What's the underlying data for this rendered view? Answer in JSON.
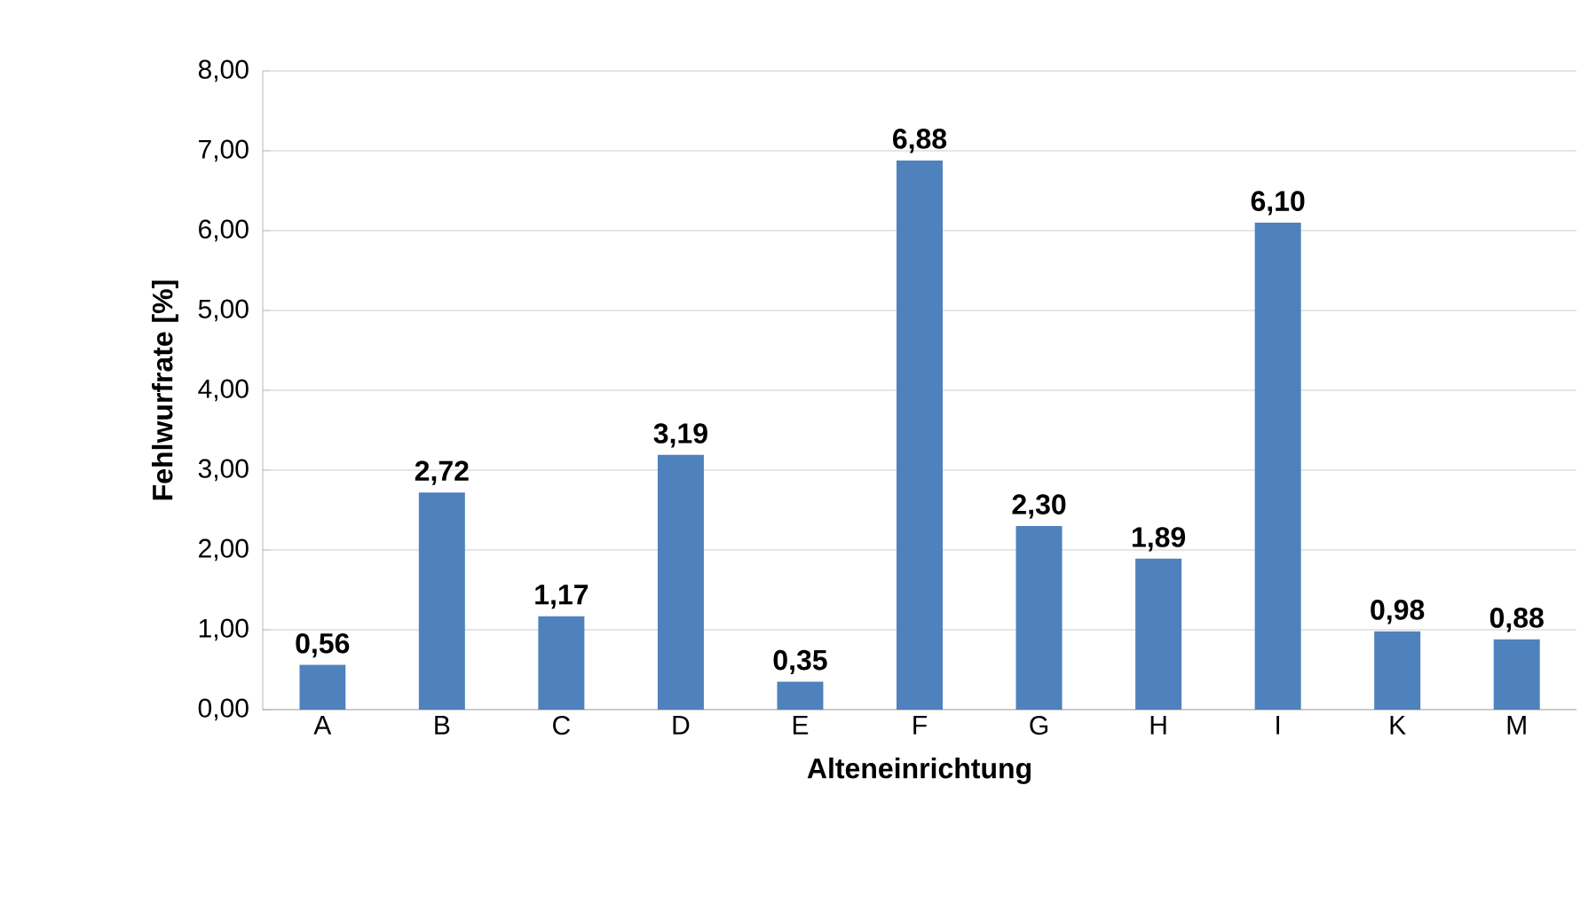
{
  "chart_data": {
    "type": "bar",
    "xlabel": "Alteneinrichtung",
    "ylabel": "Fehlwurfrate [%]",
    "categories": [
      "A",
      "B",
      "C",
      "D",
      "E",
      "F",
      "G",
      "H",
      "I",
      "K",
      "M"
    ],
    "values": [
      0.56,
      2.72,
      1.17,
      3.19,
      0.35,
      6.88,
      2.3,
      1.89,
      6.1,
      0.98,
      0.88
    ],
    "value_labels": [
      "0,56",
      "2,72",
      "1,17",
      "3,19",
      "0,35",
      "6,88",
      "2,30",
      "1,89",
      "6,10",
      "0,98",
      "0,88"
    ],
    "color": "#4f81bd",
    "ylim": [
      0,
      8
    ],
    "yticks": [
      {
        "value": 0,
        "label": "0,00"
      },
      {
        "value": 1,
        "label": "1,00"
      },
      {
        "value": 2,
        "label": "2,00"
      },
      {
        "value": 3,
        "label": "3,00"
      },
      {
        "value": 4,
        "label": "4,00"
      },
      {
        "value": 5,
        "label": "5,00"
      },
      {
        "value": 6,
        "label": "6,00"
      },
      {
        "value": 7,
        "label": "7,00"
      },
      {
        "value": 8,
        "label": "8,00"
      }
    ],
    "grid": "y"
  }
}
